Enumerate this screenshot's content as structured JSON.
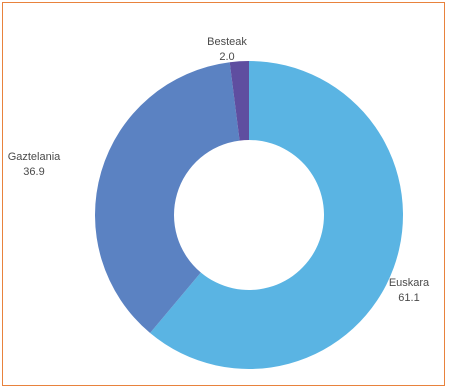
{
  "chart_data": {
    "type": "pie",
    "variant": "donut",
    "slices": [
      {
        "name": "Euskara",
        "value": 61.1,
        "value_label": "61.1",
        "color": "#5ab4e3"
      },
      {
        "name": "Gaztelania",
        "value": 36.9,
        "value_label": "36.9",
        "color": "#5b82c2"
      },
      {
        "name": "Besteak",
        "value": 2.0,
        "value_label": "2.0",
        "color": "#5f4ea0"
      }
    ],
    "start": "top, clockwise",
    "legend": "none"
  }
}
